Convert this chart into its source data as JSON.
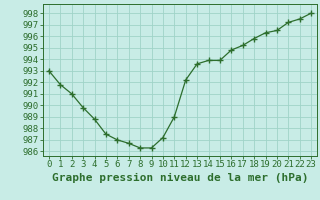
{
  "x": [
    0,
    1,
    2,
    3,
    4,
    5,
    6,
    7,
    8,
    9,
    10,
    11,
    12,
    13,
    14,
    15,
    16,
    17,
    18,
    19,
    20,
    21,
    22,
    23
  ],
  "y": [
    993.0,
    991.8,
    991.0,
    989.8,
    988.8,
    987.5,
    987.0,
    986.7,
    986.3,
    986.3,
    987.2,
    989.0,
    992.2,
    993.6,
    993.9,
    993.9,
    994.8,
    995.2,
    995.8,
    996.3,
    996.5,
    997.2,
    997.5,
    998.0
  ],
  "line_color": "#2d6e2d",
  "marker": "+",
  "marker_color": "#2d6e2d",
  "bg_color": "#c8ece6",
  "grid_color": "#a0d4c8",
  "xlabel": "Graphe pression niveau de la mer (hPa)",
  "xlabel_fontsize": 8,
  "ylabel_ticks": [
    986,
    987,
    988,
    989,
    990,
    991,
    992,
    993,
    994,
    995,
    996,
    997,
    998
  ],
  "ylim": [
    985.6,
    998.8
  ],
  "xlim": [
    -0.5,
    23.5
  ],
  "tick_fontsize": 6.5,
  "tick_color": "#2d6e2d",
  "figsize": [
    3.2,
    2.0
  ],
  "dpi": 100
}
